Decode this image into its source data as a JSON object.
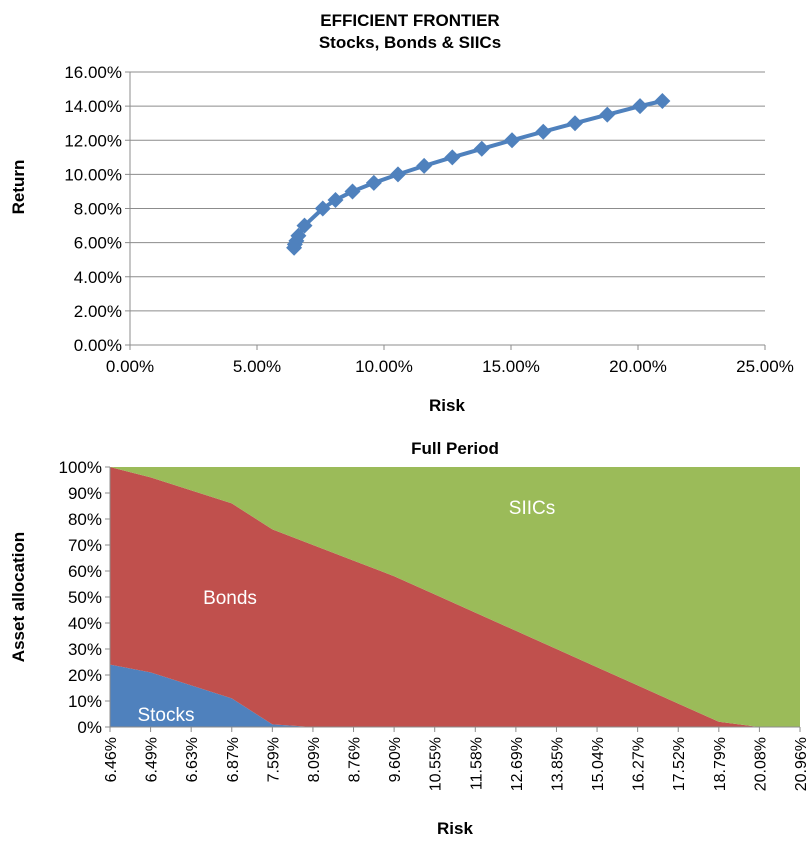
{
  "chart_data": [
    {
      "type": "line",
      "title": "EFFICIENT FRONTIER",
      "subtitle": "Stocks, Bonds & SIICs",
      "xlabel": "Risk",
      "ylabel": "Return",
      "xlim": [
        0,
        25
      ],
      "ylim": [
        0,
        16
      ],
      "x_ticks": [
        "0.00%",
        "5.00%",
        "10.00%",
        "15.00%",
        "20.00%",
        "25.00%"
      ],
      "y_ticks": [
        "0.00%",
        "2.00%",
        "4.00%",
        "6.00%",
        "8.00%",
        "10.00%",
        "12.00%",
        "14.00%",
        "16.00%"
      ],
      "grid": true,
      "colors": {
        "series": "#4f81bd",
        "grid": "#8c8c8c",
        "axis": "#8c8c8c"
      },
      "series": [
        {
          "x": [
            6.46,
            6.49,
            6.55,
            6.63,
            6.87,
            7.59,
            8.09,
            8.76,
            9.6,
            10.55,
            11.58,
            12.69,
            13.85,
            15.04,
            16.27,
            17.52,
            18.79,
            20.08,
            20.96
          ],
          "y": [
            5.7,
            5.9,
            6.1,
            6.4,
            7.0,
            8.0,
            8.5,
            9.0,
            9.5,
            10.0,
            10.5,
            11.0,
            11.5,
            12.0,
            12.5,
            13.0,
            13.5,
            14.0,
            14.3
          ]
        }
      ]
    },
    {
      "type": "area",
      "title": "Full Period",
      "xlabel": "Risk",
      "ylabel": "Asset allocation",
      "ylim": [
        0,
        100
      ],
      "y_ticks": [
        "0%",
        "10%",
        "20%",
        "30%",
        "40%",
        "50%",
        "60%",
        "70%",
        "80%",
        "90%",
        "100%"
      ],
      "categories": [
        "6.46%",
        "6.49%",
        "6.63%",
        "6.87%",
        "7.59%",
        "8.09%",
        "8.76%",
        "9.60%",
        "10.55%",
        "11.58%",
        "12.69%",
        "13.85%",
        "15.04%",
        "16.27%",
        "17.52%",
        "18.79%",
        "20.08%",
        "20.96%"
      ],
      "stacked": true,
      "series": [
        {
          "name": "Stocks",
          "color": "#4f81bd",
          "values": [
            24,
            21,
            16,
            11,
            1,
            0,
            0,
            0,
            0,
            0,
            0,
            0,
            0,
            0,
            0,
            0,
            0,
            0
          ]
        },
        {
          "name": "Bonds",
          "color": "#c0504d",
          "values": [
            76,
            75,
            75,
            75,
            75,
            70,
            64,
            58,
            51,
            44,
            37,
            30,
            23,
            16,
            9,
            2,
            0,
            0
          ]
        },
        {
          "name": "SIICs",
          "color": "#9bbb59",
          "values": [
            0,
            4,
            9,
            14,
            24,
            30,
            36,
            42,
            49,
            56,
            63,
            70,
            77,
            84,
            91,
            98,
            100,
            100
          ]
        }
      ]
    }
  ]
}
